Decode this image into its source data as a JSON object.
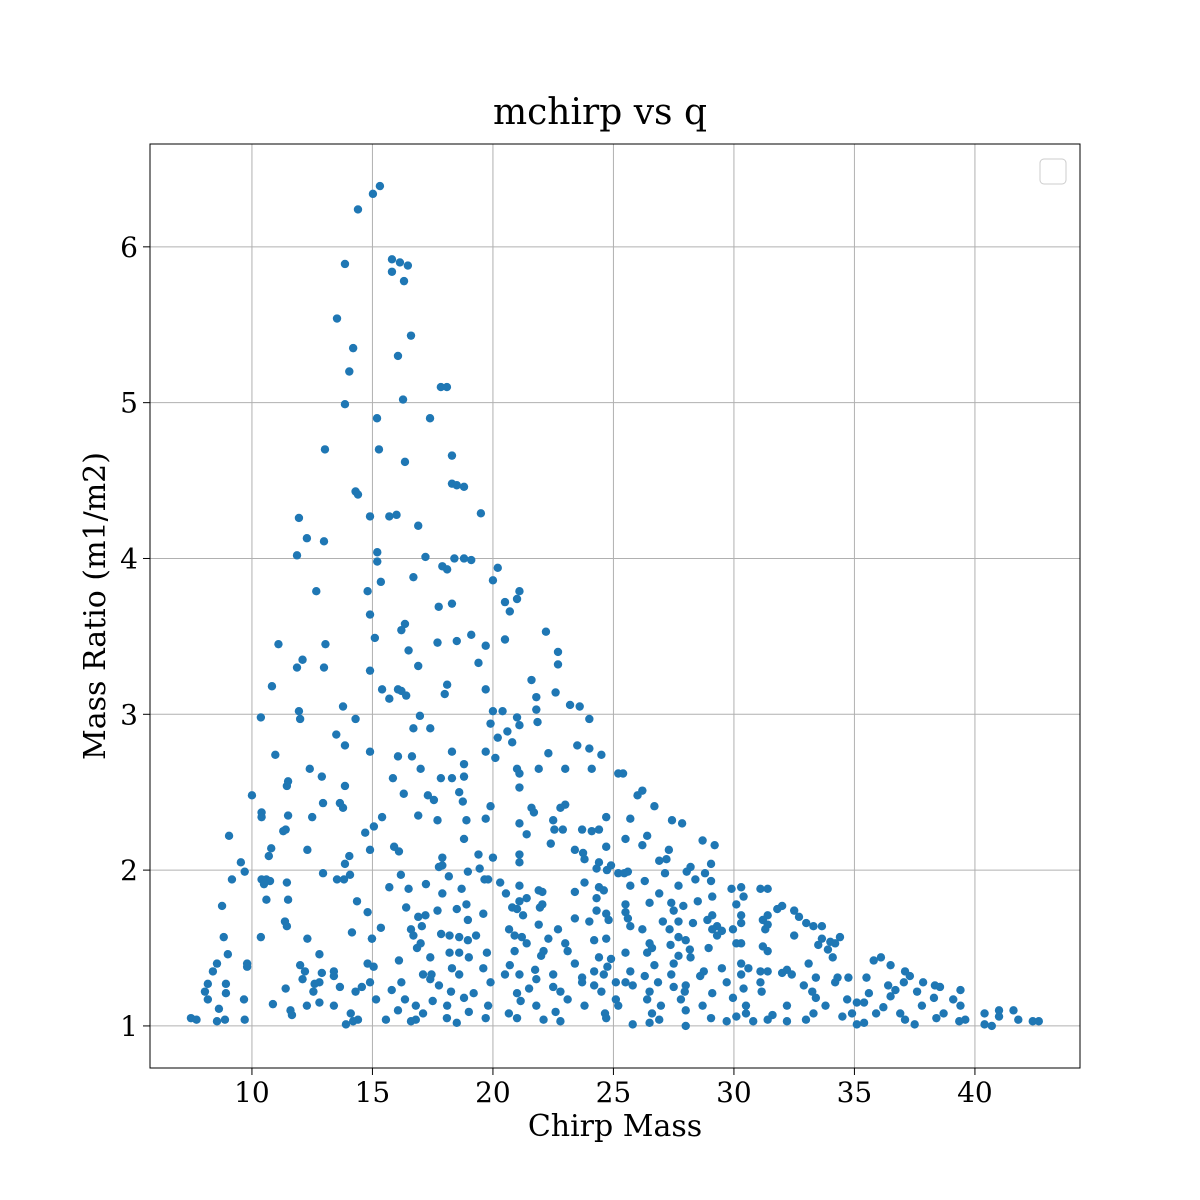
{
  "chart_data": {
    "type": "scatter",
    "title": "mchirp vs q",
    "x_label": "Chirp Mass",
    "y_label": "Mass Ratio (m1/m2)",
    "color": "#1f77b4",
    "grid": true,
    "xlim": [
      5.77,
      44.36
    ],
    "ylim": [
      0.73,
      6.66
    ],
    "xticks": [
      10,
      15,
      20,
      25,
      30,
      35,
      40
    ],
    "yticks": [
      1,
      2,
      3,
      4,
      5,
      6
    ],
    "x": [
      15.31,
      15.02,
      14.4,
      13.86,
      15.81,
      16.14,
      16.47,
      15.81,
      16.31,
      13.53,
      16.6,
      14.2,
      16.06,
      14.04,
      17.84,
      18.09,
      13.86,
      16.27,
      15.19,
      17.39,
      15.27,
      13.03,
      16.35,
      18.3,
      14.3,
      14.4,
      18.3,
      18.8,
      18.5,
      14.9,
      15.7,
      16.0,
      19.5,
      11.95,
      12.28,
      12.99,
      16.9,
      15.2,
      11.87,
      17.2,
      18.4,
      18.8,
      19.1,
      17.9,
      18.1,
      15.2,
      20.2,
      20.0,
      16.7,
      15.35,
      21.1,
      12.67,
      14.8,
      21.0,
      20.5,
      18.3,
      17.75,
      14.9,
      20.7,
      22.2,
      16.35,
      16.2,
      19.1,
      18.5,
      17.7,
      11.1,
      13.05,
      20.5,
      15.1,
      19.7,
      16.5,
      22.7,
      12.1,
      22.7,
      16.9,
      11.87,
      12.99,
      14.9,
      19.4,
      21.6,
      18.1,
      10.83,
      19.7,
      15.4,
      16.06,
      16.2,
      22.6,
      18.0,
      21.8,
      16.4,
      15.7,
      23.2,
      23.6,
      11.95,
      20.0,
      20.4,
      21.8,
      13.78,
      16.97,
      24.0,
      21.0,
      12.0,
      19.9,
      21.85,
      21.1,
      10.37,
      16.7,
      17.4,
      14.3,
      13.5,
      20.6,
      20.2,
      20.8,
      23.5,
      13.86,
      24.0,
      10.97,
      14.9,
      20.1,
      24.5,
      18.3,
      19.7,
      16.06,
      16.64,
      18.8,
      22.3,
      21.0,
      21.9,
      21.1,
      24.1,
      23.0,
      12.4,
      17.0,
      12.9,
      18.8,
      25.4,
      25.2,
      17.84,
      18.3,
      11.5,
      11.45,
      21.1,
      15.85,
      26.2,
      26.0,
      13.86,
      16.3,
      10.0,
      17.3,
      18.6,
      17.55,
      12.95,
      18.75,
      13.65,
      13.78,
      19.9,
      23.0,
      26.7,
      22.8,
      21.6,
      21.7,
      15.4,
      10.4,
      10.4,
      11.5,
      12.5,
      16.9,
      17.7,
      18.9,
      19.7,
      21.1,
      22.5,
      24.7,
      25.7,
      27.85,
      15.06,
      14.7,
      11.3,
      24.1,
      24.4,
      11.4,
      22.9,
      23.7,
      22.55,
      9.05,
      27.43,
      21.4,
      26.4,
      25.5,
      28.7,
      15.9,
      12.3,
      18.8,
      10.8,
      26.2,
      29.2,
      16.1,
      10.7,
      14.9,
      24.7,
      23.4,
      22.4,
      27.3,
      23.74,
      14.04,
      20.0,
      21.1,
      19.4,
      23.8,
      17.9,
      27.2,
      24.4,
      13.86,
      21.1,
      9.54,
      26.9,
      24.3,
      24.9,
      29.05,
      17.9,
      9.7,
      19.45,
      17.76,
      24.73,
      28.2,
      27.14,
      28.04,
      18.96,
      25.2,
      12.95,
      14.07,
      25.45,
      25.6,
      16.18,
      28.8,
      18.17,
      10.4,
      13.53,
      13.82,
      28.4,
      9.17,
      26.3,
      11.45,
      19.65,
      19.8,
      10.6,
      10.75,
      20.3,
      29.05,
      10.5,
      17.22,
      23.8,
      25.7,
      29.9,
      31.1,
      31.4,
      30.3,
      27.7,
      21.9,
      18.7,
      24.4,
      16.5,
      15.7,
      21.1,
      24.6,
      22.05,
      10.6,
      23.4,
      20.54,
      21.4,
      17.9,
      11.5,
      14.36,
      29.1,
      30.4,
      24.3,
      26.9,
      21.1,
      22.05,
      27.4,
      27.5,
      25.5,
      26.5,
      8.76,
      18.9,
      28.5,
      30.1,
      32.0,
      27.9,
      16.4,
      21.95,
      20.8,
      21.0,
      31.8,
      24.3,
      32.5,
      31.4,
      32.7,
      14.8,
      17.7,
      25.5,
      24.7,
      19.6,
      17.2,
      30.3,
      21.25,
      33.0,
      29.1,
      16.9,
      18.5,
      11.37,
      24.8,
      25.6,
      28.9,
      27.7,
      31.2,
      24.0,
      18.96,
      23.4,
      27.05,
      31.4,
      33.3,
      17.05,
      30.3,
      11.45,
      28.3,
      33.65,
      29.3,
      25.7,
      21.9,
      16.6,
      14.15,
      16.7,
      14.98,
      20.67,
      22.7,
      26.2,
      27.33,
      29.1,
      29.3,
      29.5,
      29.96,
      31.3,
      32.5,
      33.65,
      34.4,
      15.35,
      17.85,
      18.6,
      18.2,
      18.96,
      19.3,
      20.9,
      21.2,
      22.3,
      12.3,
      10.37,
      8.83,
      14.98,
      21.4,
      23.0,
      24.2,
      24.7,
      28.0,
      27.7,
      30.3,
      33.5,
      34.0,
      34.2,
      30.1,
      27.37,
      26.5,
      17.0,
      23.1,
      26.6,
      28.95,
      31.2,
      33.9,
      16.85,
      20.9,
      22.1,
      25.5,
      28.17,
      31.4,
      18.2,
      26.4,
      18.6,
      19.75,
      9.0,
      12.8,
      22.0,
      24.4,
      27.7,
      28.2,
      34.1,
      24.9,
      35.8,
      36.1,
      17.4,
      19.0,
      9.8,
      12.0,
      14.8,
      15.05,
      8.55,
      9.8,
      16.1,
      20.7,
      23.4,
      24.75,
      26.7,
      27.5,
      30.3,
      33.1,
      36.5,
      29.5,
      30.6,
      32.2,
      19.6,
      18.3,
      21.75,
      24.2,
      25.7,
      27.4,
      28.75,
      32.0,
      8.38,
      12.2,
      13.4,
      12.9,
      17.1,
      18.6,
      21.1,
      31.1,
      31.4,
      37.1,
      37.3,
      33.4,
      34.3,
      34.75,
      13.4,
      17.45,
      20.5,
      22.5,
      23.7,
      24.6,
      26.3,
      28.6,
      30.3,
      32.4,
      35.5,
      12.8,
      12.1,
      14.9,
      16.2,
      17.4,
      19.9,
      21.8,
      23.7,
      25.1,
      25.5,
      26.85,
      28.0,
      29.7,
      31.1,
      34.2,
      37.85,
      37.05,
      8.17,
      8.92,
      12.6,
      13.65,
      14.56,
      17.76,
      21.5,
      22.5,
      24.2,
      25.8,
      27.5,
      30.4,
      32.9,
      38.34,
      38.55,
      36.4,
      36.7,
      8.05,
      8.92,
      11.4,
      12.55,
      14.3,
      15.8,
      18.26,
      19.2,
      21.0,
      22.8,
      24.5,
      26.5,
      27.96,
      29.1,
      31.15,
      33.25,
      35.6,
      37.6,
      39.4,
      8.17,
      9.67,
      12.8,
      15.15,
      16.35,
      17.5,
      18.8,
      21.15,
      23.1,
      25.1,
      26.4,
      27.8,
      29.96,
      33.4,
      34.7,
      35.4,
      36.5,
      38.3,
      39.1,
      10.87,
      12.28,
      13.4,
      16.8,
      18.1,
      19.8,
      21.8,
      23.8,
      25.2,
      26.97,
      28.7,
      30.5,
      32.2,
      33.8,
      35.1,
      36.2,
      37.8,
      39.4,
      41.0,
      41.6,
      8.63,
      11.6,
      14.1,
      16.06,
      17.1,
      19.0,
      20.66,
      22.6,
      24.65,
      26.6,
      28.0,
      30.5,
      31.6,
      33.3,
      34.9,
      35.9,
      36.9,
      38.7,
      40.4,
      41.0,
      7.47,
      7.7,
      8.88,
      9.7,
      11.66,
      14.4,
      15.56,
      16.8,
      18.09,
      19.7,
      21.0,
      22.1,
      24.7,
      26.9,
      29.05,
      30.1,
      31.4,
      32.99,
      34.5,
      37.1,
      38.4,
      39.6,
      41.8,
      42.4,
      42.65,
      8.55,
      13.9,
      14.2,
      16.6,
      18.5,
      22.8,
      25.8,
      26.5,
      28.0,
      29.7,
      30.8,
      32.2,
      35.1,
      35.4,
      37.5,
      39.35,
      40.4,
      40.7
    ],
    "y": [
      6.39,
      6.34,
      6.24,
      5.89,
      5.92,
      5.9,
      5.88,
      5.84,
      5.78,
      5.54,
      5.43,
      5.35,
      5.3,
      5.2,
      5.1,
      5.1,
      4.99,
      5.02,
      4.9,
      4.9,
      4.7,
      4.7,
      4.62,
      4.66,
      4.43,
      4.41,
      4.48,
      4.46,
      4.47,
      4.27,
      4.27,
      4.28,
      4.29,
      4.26,
      4.13,
      4.11,
      4.21,
      4.04,
      4.02,
      4.01,
      4.0,
      4.0,
      3.99,
      3.95,
      3.93,
      3.98,
      3.94,
      3.86,
      3.88,
      3.85,
      3.79,
      3.79,
      3.79,
      3.74,
      3.72,
      3.71,
      3.69,
      3.64,
      3.66,
      3.53,
      3.58,
      3.54,
      3.51,
      3.47,
      3.46,
      3.45,
      3.45,
      3.48,
      3.49,
      3.44,
      3.41,
      3.4,
      3.35,
      3.32,
      3.31,
      3.3,
      3.3,
      3.28,
      3.33,
      3.22,
      3.19,
      3.18,
      3.16,
      3.16,
      3.16,
      3.15,
      3.14,
      3.13,
      3.11,
      3.12,
      3.1,
      3.06,
      3.05,
      3.02,
      3.02,
      3.02,
      3.03,
      3.05,
      2.99,
      2.97,
      2.98,
      2.97,
      2.94,
      2.95,
      2.93,
      2.98,
      2.91,
      2.91,
      2.97,
      2.87,
      2.89,
      2.85,
      2.82,
      2.8,
      2.8,
      2.78,
      2.74,
      2.76,
      2.72,
      2.74,
      2.76,
      2.76,
      2.73,
      2.73,
      2.68,
      2.75,
      2.65,
      2.65,
      2.62,
      2.65,
      2.65,
      2.65,
      2.65,
      2.6,
      2.6,
      2.62,
      2.62,
      2.59,
      2.59,
      2.57,
      2.54,
      2.53,
      2.59,
      2.51,
      2.48,
      2.54,
      2.49,
      2.48,
      2.48,
      2.5,
      2.45,
      2.43,
      2.44,
      2.43,
      2.4,
      2.41,
      2.42,
      2.41,
      2.4,
      2.4,
      2.37,
      2.34,
      2.37,
      2.34,
      2.35,
      2.34,
      2.35,
      2.32,
      2.32,
      2.33,
      2.3,
      2.32,
      2.34,
      2.33,
      2.3,
      2.28,
      2.24,
      2.25,
      2.25,
      2.26,
      2.26,
      2.26,
      2.26,
      2.26,
      2.22,
      2.32,
      2.23,
      2.22,
      2.2,
      2.19,
      2.15,
      2.13,
      2.2,
      2.14,
      2.16,
      2.16,
      2.12,
      2.09,
      2.13,
      2.15,
      2.13,
      2.17,
      2.13,
      2.11,
      2.09,
      2.08,
      2.1,
      2.1,
      2.07,
      2.08,
      2.07,
      2.05,
      2.04,
      2.05,
      2.05,
      2.06,
      2.01,
      2.03,
      2.04,
      2.03,
      1.99,
      2.01,
      2.02,
      2.0,
      2.02,
      1.98,
      1.99,
      1.99,
      1.98,
      1.98,
      1.97,
      1.98,
      1.99,
      1.97,
      1.98,
      1.96,
      1.94,
      1.94,
      1.94,
      1.94,
      1.94,
      1.93,
      1.92,
      1.94,
      1.94,
      1.94,
      1.93,
      1.92,
      1.93,
      1.91,
      1.91,
      1.92,
      1.9,
      1.88,
      1.88,
      1.88,
      1.89,
      1.9,
      1.87,
      1.88,
      1.89,
      1.88,
      1.89,
      1.9,
      1.87,
      1.86,
      1.81,
      1.86,
      1.85,
      1.82,
      1.85,
      1.81,
      1.8,
      1.83,
      1.83,
      1.82,
      1.85,
      1.8,
      1.78,
      1.79,
      1.74,
      1.78,
      1.79,
      1.77,
      1.78,
      1.8,
      1.78,
      1.77,
      1.77,
      1.76,
      1.76,
      1.76,
      1.75,
      1.75,
      1.74,
      1.74,
      1.71,
      1.7,
      1.73,
      1.74,
      1.73,
      1.72,
      1.72,
      1.71,
      1.71,
      1.71,
      1.66,
      1.71,
      1.7,
      1.75,
      1.67,
      1.68,
      1.69,
      1.68,
      1.67,
      1.68,
      1.67,
      1.68,
      1.69,
      1.67,
      1.65,
      1.64,
      1.64,
      1.66,
      1.64,
      1.66,
      1.64,
      1.64,
      1.64,
      1.65,
      1.62,
      1.6,
      1.58,
      1.56,
      1.62,
      1.62,
      1.62,
      1.62,
      1.62,
      1.58,
      1.61,
      1.62,
      1.62,
      1.58,
      1.56,
      1.57,
      1.63,
      1.59,
      1.57,
      1.58,
      1.55,
      1.58,
      1.58,
      1.57,
      1.56,
      1.56,
      1.57,
      1.57,
      1.56,
      1.53,
      1.53,
      1.55,
      1.56,
      1.55,
      1.57,
      1.53,
      1.52,
      1.54,
      1.53,
      1.53,
      1.52,
      1.53,
      1.53,
      1.48,
      1.5,
      1.5,
      1.51,
      1.49,
      1.5,
      1.48,
      1.48,
      1.47,
      1.49,
      1.48,
      1.47,
      1.47,
      1.47,
      1.47,
      1.46,
      1.46,
      1.45,
      1.44,
      1.45,
      1.44,
      1.44,
      1.43,
      1.42,
      1.44,
      1.44,
      1.44,
      1.4,
      1.39,
      1.4,
      1.38,
      1.4,
      1.38,
      1.42,
      1.39,
      1.4,
      1.38,
      1.39,
      1.4,
      1.4,
      1.4,
      1.39,
      1.37,
      1.37,
      1.36,
      1.37,
      1.37,
      1.36,
      1.35,
      1.35,
      1.33,
      1.35,
      1.34,
      1.35,
      1.35,
      1.35,
      1.34,
      1.33,
      1.33,
      1.33,
      1.35,
      1.35,
      1.35,
      1.32,
      1.31,
      1.31,
      1.31,
      1.32,
      1.33,
      1.33,
      1.33,
      1.31,
      1.33,
      1.32,
      1.32,
      1.33,
      1.33,
      1.31,
      1.28,
      1.3,
      1.28,
      1.28,
      1.3,
      1.28,
      1.3,
      1.28,
      1.28,
      1.28,
      1.28,
      1.26,
      1.28,
      1.28,
      1.28,
      1.28,
      1.28,
      1.27,
      1.27,
      1.27,
      1.25,
      1.25,
      1.26,
      1.24,
      1.25,
      1.26,
      1.26,
      1.25,
      1.24,
      1.26,
      1.26,
      1.25,
      1.26,
      1.23,
      1.22,
      1.21,
      1.24,
      1.22,
      1.22,
      1.23,
      1.22,
      1.21,
      1.21,
      1.22,
      1.22,
      1.22,
      1.22,
      1.21,
      1.22,
      1.22,
      1.21,
      1.22,
      1.23,
      1.17,
      1.17,
      1.15,
      1.17,
      1.17,
      1.16,
      1.18,
      1.16,
      1.17,
      1.17,
      1.17,
      1.17,
      1.18,
      1.18,
      1.17,
      1.15,
      1.19,
      1.18,
      1.17,
      1.14,
      1.13,
      1.13,
      1.13,
      1.13,
      1.13,
      1.13,
      1.13,
      1.13,
      1.13,
      1.13,
      1.13,
      1.13,
      1.13,
      1.15,
      1.12,
      1.13,
      1.13,
      1.1,
      1.1,
      1.11,
      1.1,
      1.08,
      1.1,
      1.08,
      1.09,
      1.08,
      1.09,
      1.08,
      1.08,
      1.1,
      1.08,
      1.07,
      1.08,
      1.08,
      1.08,
      1.08,
      1.08,
      1.08,
      1.06,
      1.05,
      1.04,
      1.04,
      1.04,
      1.07,
      1.04,
      1.04,
      1.04,
      1.05,
      1.05,
      1.05,
      1.04,
      1.05,
      1.04,
      1.05,
      1.06,
      1.04,
      1.04,
      1.06,
      1.04,
      1.05,
      1.04,
      1.04,
      1.03,
      1.03,
      1.03,
      1.01,
      1.03,
      1.03,
      1.02,
      1.03,
      1.01,
      1.02,
      1.0,
      1.03,
      1.03,
      1.03,
      1.01,
      1.02,
      1.01,
      1.03,
      1.01,
      1.0
    ]
  }
}
